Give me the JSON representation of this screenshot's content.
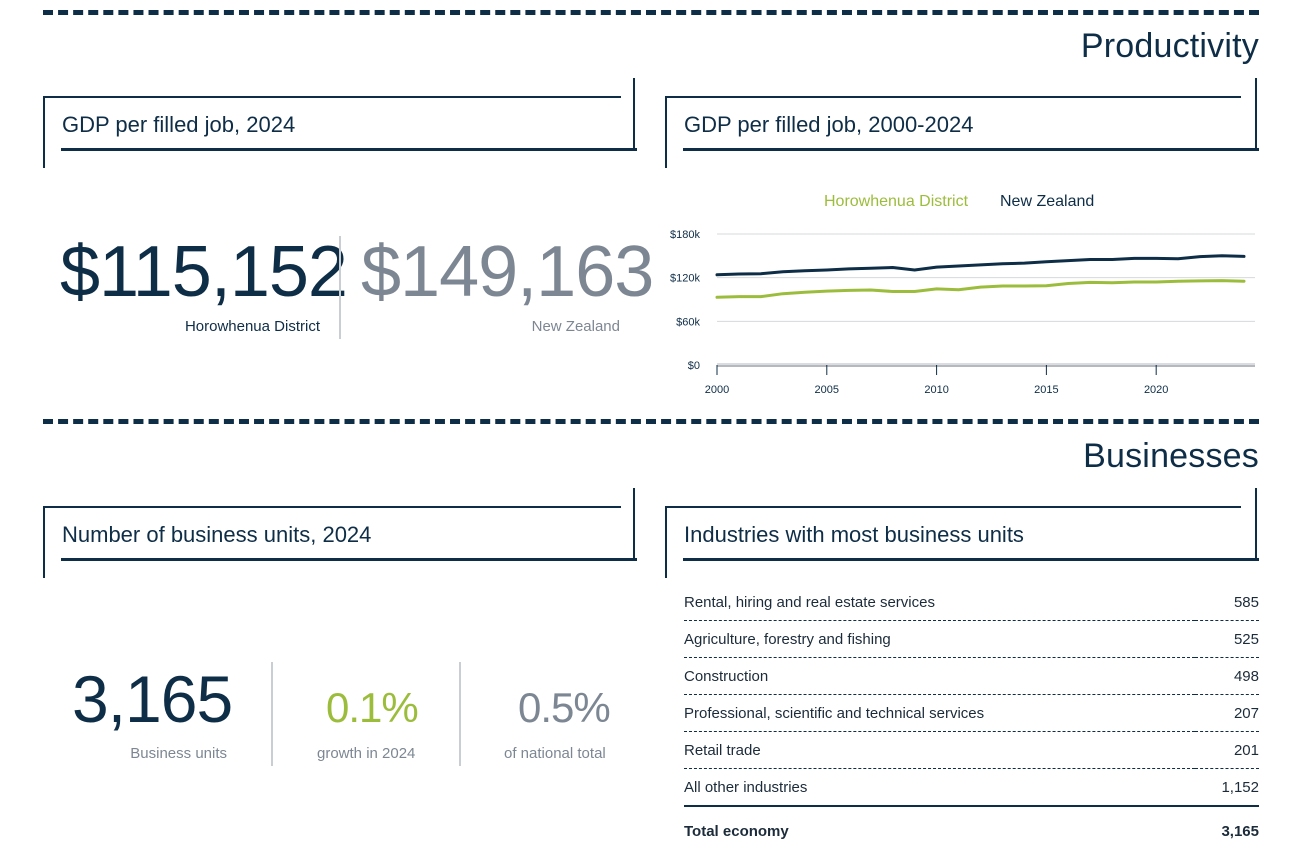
{
  "productivity": {
    "section_title": "Productivity",
    "gdp_card": {
      "title": "GDP per filled job, 2024",
      "district_value": "$115,152",
      "district_label": "Horowhenua District",
      "nz_value": "$149,163",
      "nz_label": "New Zealand"
    },
    "trend_card": {
      "title": "GDP per filled job, 2000-2024"
    }
  },
  "businesses": {
    "section_title": "Businesses",
    "units_card": {
      "title": "Number of business units, 2024",
      "units_value": "3,165",
      "units_label": "Business units",
      "growth_value": "0.1%",
      "growth_label": "growth in 2024",
      "share_value": "0.5%",
      "share_label": "of national total"
    },
    "industries_card": {
      "title": "Industries with most business units",
      "rows": [
        {
          "name": "Rental, hiring and real estate services",
          "value": "585"
        },
        {
          "name": "Agriculture, forestry and fishing",
          "value": "525"
        },
        {
          "name": "Construction",
          "value": "498"
        },
        {
          "name": "Professional, scientific and technical services",
          "value": "207"
        },
        {
          "name": "Retail trade",
          "value": "201"
        },
        {
          "name": "All other industries",
          "value": "1,152"
        }
      ],
      "total_label": "Total economy",
      "total_value": "3,165"
    }
  },
  "colors": {
    "navy": "#0e2d47",
    "green": "#9cbd3c",
    "grey": "#7d8793"
  },
  "chart_data": {
    "type": "line",
    "title": "",
    "xlabel": "",
    "ylabel": "",
    "x": [
      2000,
      2001,
      2002,
      2003,
      2004,
      2005,
      2006,
      2007,
      2008,
      2009,
      2010,
      2011,
      2012,
      2013,
      2014,
      2015,
      2016,
      2017,
      2018,
      2019,
      2020,
      2021,
      2022,
      2023,
      2024
    ],
    "series": [
      {
        "name": "Horowhenua District",
        "color": "#9cbd3c",
        "values": [
          93000,
          94000,
          94000,
          98000,
          100000,
          101500,
          102500,
          103000,
          101000,
          101000,
          104500,
          103500,
          107000,
          108500,
          108500,
          109000,
          112000,
          113500,
          113000,
          114000,
          114000,
          115000,
          115500,
          116000,
          115200
        ]
      },
      {
        "name": "New Zealand",
        "color": "#0e2d47",
        "values": [
          124000,
          125000,
          125500,
          128000,
          129500,
          130500,
          132000,
          133000,
          134000,
          130500,
          134500,
          136000,
          137500,
          139000,
          140000,
          142000,
          143500,
          145000,
          145000,
          146500,
          146500,
          146000,
          149000,
          150000,
          149200
        ]
      }
    ],
    "xticks": [
      2000,
      2005,
      2010,
      2015,
      2020
    ],
    "yticks": [
      {
        "value": 0,
        "label": "$0"
      },
      {
        "value": 60000,
        "label": "$60k"
      },
      {
        "value": 120000,
        "label": "$120k"
      },
      {
        "value": 180000,
        "label": "$180k"
      }
    ],
    "xlim": [
      2000,
      2024.5
    ],
    "ylim": [
      0,
      180000
    ],
    "grid": true,
    "legend": "top"
  }
}
